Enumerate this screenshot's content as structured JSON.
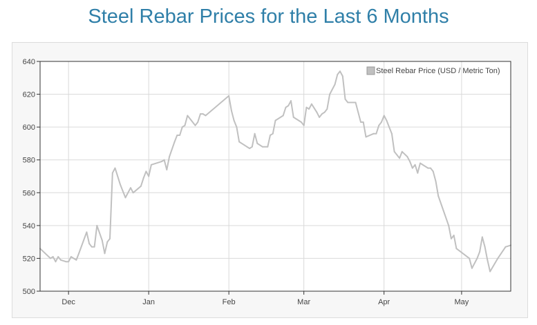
{
  "title": "Steel Rebar Prices for the Last 6 Months",
  "colors": {
    "title": "#2f7fa8",
    "line": "#c0c0c0",
    "grid": "#d9d9d9",
    "frame": "#333333",
    "legend_swatch": "#c0c0c0"
  },
  "chart_data": {
    "type": "line",
    "title": "Steel Rebar Prices for the Last 6 Months",
    "xlabel": "",
    "ylabel": "",
    "ylim": [
      500,
      640
    ],
    "yticks": [
      500,
      520,
      540,
      560,
      580,
      600,
      620,
      640
    ],
    "xlim": [
      "2023-11-20",
      "2024-05-20"
    ],
    "xticks": [
      {
        "date": "2023-12-01",
        "label": "Dec"
      },
      {
        "date": "2024-01-01",
        "label": "Jan"
      },
      {
        "date": "2024-02-01",
        "label": "Feb"
      },
      {
        "date": "2024-03-01",
        "label": "Mar"
      },
      {
        "date": "2024-04-01",
        "label": "Apr"
      },
      {
        "date": "2024-05-01",
        "label": "May"
      }
    ],
    "grid": true,
    "legend": "top-right",
    "series": [
      {
        "name": "Steel Rebar Price (USD / Metric Ton)",
        "points": [
          [
            "2023-11-20",
            526
          ],
          [
            "2023-11-22",
            523
          ],
          [
            "2023-11-24",
            520
          ],
          [
            "2023-11-25",
            521
          ],
          [
            "2023-11-26",
            518
          ],
          [
            "2023-11-27",
            521
          ],
          [
            "2023-11-28",
            519
          ],
          [
            "2023-11-30",
            518
          ],
          [
            "2023-12-01",
            518
          ],
          [
            "2023-12-02",
            521
          ],
          [
            "2023-12-04",
            519
          ],
          [
            "2023-12-05",
            523
          ],
          [
            "2023-12-08",
            536
          ],
          [
            "2023-12-09",
            529
          ],
          [
            "2023-12-10",
            527
          ],
          [
            "2023-12-11",
            527
          ],
          [
            "2023-12-12",
            540
          ],
          [
            "2023-12-14",
            531
          ],
          [
            "2023-12-15",
            523
          ],
          [
            "2023-12-16",
            530
          ],
          [
            "2023-12-17",
            532
          ],
          [
            "2023-12-18",
            572
          ],
          [
            "2023-12-19",
            575
          ],
          [
            "2023-12-21",
            565
          ],
          [
            "2023-12-22",
            561
          ],
          [
            "2023-12-23",
            557
          ],
          [
            "2023-12-25",
            563
          ],
          [
            "2023-12-26",
            560
          ],
          [
            "2023-12-29",
            564
          ],
          [
            "2023-12-30",
            569
          ],
          [
            "2023-12-31",
            573
          ],
          [
            "2024-01-01",
            570
          ],
          [
            "2024-01-02",
            577
          ],
          [
            "2024-01-06",
            579
          ],
          [
            "2024-01-07",
            580
          ],
          [
            "2024-01-08",
            574
          ],
          [
            "2024-01-09",
            582
          ],
          [
            "2024-01-11",
            591
          ],
          [
            "2024-01-12",
            595
          ],
          [
            "2024-01-13",
            595
          ],
          [
            "2024-01-14",
            600
          ],
          [
            "2024-01-15",
            601
          ],
          [
            "2024-01-16",
            607
          ],
          [
            "2024-01-19",
            601
          ],
          [
            "2024-01-20",
            603
          ],
          [
            "2024-01-21",
            608
          ],
          [
            "2024-01-22",
            608
          ],
          [
            "2024-01-23",
            607
          ],
          [
            "2024-02-01",
            619
          ],
          [
            "2024-02-02",
            610
          ],
          [
            "2024-02-03",
            604
          ],
          [
            "2024-02-04",
            600
          ],
          [
            "2024-02-05",
            591
          ],
          [
            "2024-02-07",
            589
          ],
          [
            "2024-02-08",
            588
          ],
          [
            "2024-02-09",
            587
          ],
          [
            "2024-02-10",
            588
          ],
          [
            "2024-02-11",
            596
          ],
          [
            "2024-02-12",
            590
          ],
          [
            "2024-02-14",
            588
          ],
          [
            "2024-02-16",
            588
          ],
          [
            "2024-02-17",
            595
          ],
          [
            "2024-02-18",
            596
          ],
          [
            "2024-02-19",
            604
          ],
          [
            "2024-02-22",
            607
          ],
          [
            "2024-02-23",
            612
          ],
          [
            "2024-02-24",
            613
          ],
          [
            "2024-02-25",
            616
          ],
          [
            "2024-02-26",
            606
          ],
          [
            "2024-02-29",
            603
          ],
          [
            "2024-03-01",
            601
          ],
          [
            "2024-03-02",
            612
          ],
          [
            "2024-03-03",
            611
          ],
          [
            "2024-03-04",
            614
          ],
          [
            "2024-03-06",
            609
          ],
          [
            "2024-03-07",
            606
          ],
          [
            "2024-03-08",
            608
          ],
          [
            "2024-03-09",
            609
          ],
          [
            "2024-03-10",
            611
          ],
          [
            "2024-03-11",
            620
          ],
          [
            "2024-03-13",
            626
          ],
          [
            "2024-03-14",
            632
          ],
          [
            "2024-03-15",
            634
          ],
          [
            "2024-03-16",
            631
          ],
          [
            "2024-03-17",
            617
          ],
          [
            "2024-03-18",
            615
          ],
          [
            "2024-03-21",
            615
          ],
          [
            "2024-03-23",
            603
          ],
          [
            "2024-03-24",
            603
          ],
          [
            "2024-03-25",
            594
          ],
          [
            "2024-03-28",
            596
          ],
          [
            "2024-03-29",
            596
          ],
          [
            "2024-03-30",
            601
          ],
          [
            "2024-03-31",
            603
          ],
          [
            "2024-04-01",
            607
          ],
          [
            "2024-04-02",
            604
          ],
          [
            "2024-04-03",
            600
          ],
          [
            "2024-04-04",
            596
          ],
          [
            "2024-04-05",
            585
          ],
          [
            "2024-04-07",
            581
          ],
          [
            "2024-04-08",
            585
          ],
          [
            "2024-04-10",
            582
          ],
          [
            "2024-04-11",
            579
          ],
          [
            "2024-04-12",
            575
          ],
          [
            "2024-04-13",
            577
          ],
          [
            "2024-04-14",
            572
          ],
          [
            "2024-04-15",
            578
          ],
          [
            "2024-04-18",
            575
          ],
          [
            "2024-04-19",
            575
          ],
          [
            "2024-04-20",
            573
          ],
          [
            "2024-04-21",
            567
          ],
          [
            "2024-04-22",
            558
          ],
          [
            "2024-04-26",
            540
          ],
          [
            "2024-04-27",
            532
          ],
          [
            "2024-04-28",
            534
          ],
          [
            "2024-04-29",
            526
          ],
          [
            "2024-05-04",
            520
          ],
          [
            "2024-05-05",
            514
          ],
          [
            "2024-05-07",
            520
          ],
          [
            "2024-05-08",
            524
          ],
          [
            "2024-05-09",
            533
          ],
          [
            "2024-05-10",
            527
          ],
          [
            "2024-05-11",
            519
          ],
          [
            "2024-05-12",
            512
          ],
          [
            "2024-05-15",
            520
          ],
          [
            "2024-05-18",
            527
          ],
          [
            "2024-05-20",
            528
          ]
        ]
      }
    ]
  }
}
